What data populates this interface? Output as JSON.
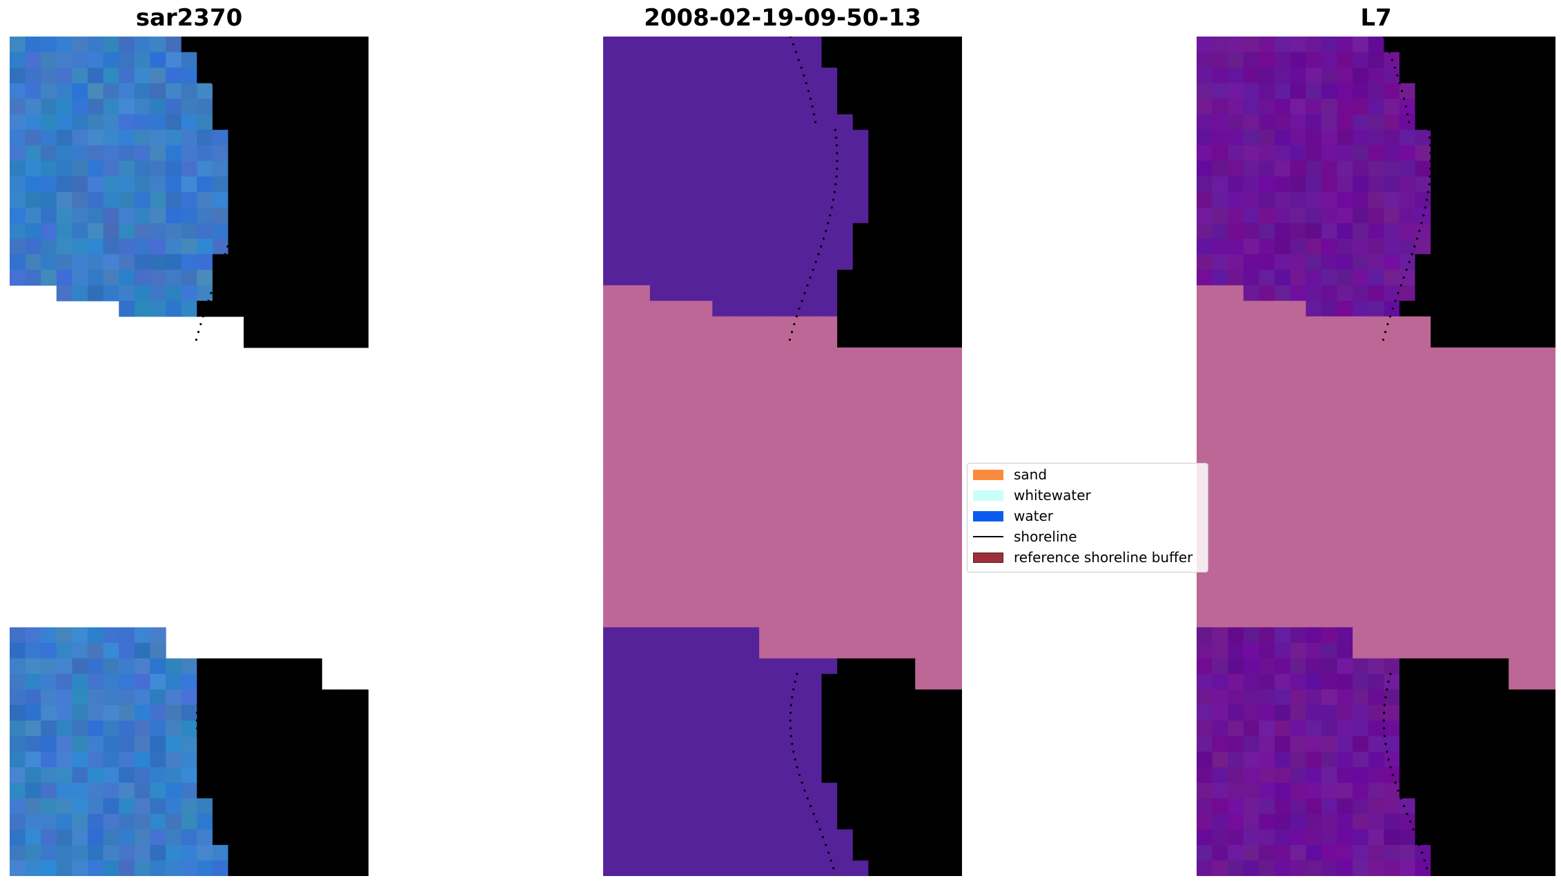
{
  "panels": [
    {
      "title": "sar2370"
    },
    {
      "title": "2008-02-19-09-50-13"
    },
    {
      "title": "L7"
    }
  ],
  "legend": {
    "items": [
      {
        "label": "sand",
        "color": "#fb8b3c",
        "kind": "patch"
      },
      {
        "label": "whitewater",
        "color": "#c8fff8",
        "kind": "patch"
      },
      {
        "label": "water",
        "color": "#0a5cf0",
        "kind": "patch"
      },
      {
        "label": "shoreline",
        "color": "#000000",
        "kind": "line"
      },
      {
        "label": "reference shoreline buffer",
        "color": "#9c2f3a",
        "kind": "patch"
      }
    ]
  },
  "colors": {
    "classified_water": "#55229a",
    "classified_buffer": "#bd6796",
    "nodata": "#ffffff",
    "rgb_water": "#3a7cc8",
    "rgb_surf": "#c8e8f0",
    "mndwi_water": "#6a1496",
    "mndwi_land": "#c8103a"
  }
}
